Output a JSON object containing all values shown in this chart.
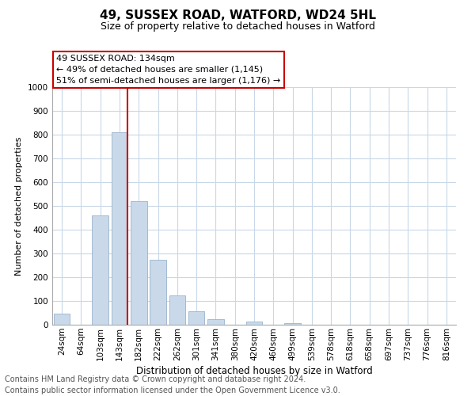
{
  "title": "49, SUSSEX ROAD, WATFORD, WD24 5HL",
  "subtitle": "Size of property relative to detached houses in Watford",
  "xlabel": "Distribution of detached houses by size in Watford",
  "ylabel": "Number of detached properties",
  "bar_labels": [
    "24sqm",
    "64sqm",
    "103sqm",
    "143sqm",
    "182sqm",
    "222sqm",
    "262sqm",
    "301sqm",
    "341sqm",
    "380sqm",
    "420sqm",
    "460sqm",
    "499sqm",
    "539sqm",
    "578sqm",
    "618sqm",
    "658sqm",
    "697sqm",
    "737sqm",
    "776sqm",
    "816sqm"
  ],
  "bar_values": [
    47,
    0,
    460,
    810,
    520,
    275,
    125,
    58,
    25,
    0,
    12,
    0,
    8,
    0,
    0,
    0,
    0,
    0,
    0,
    0,
    0
  ],
  "bar_color": "#c9d9ea",
  "bar_edge_color": "#9ab4cc",
  "vline_color": "#cc0000",
  "vline_index": 3,
  "ylim": [
    0,
    1000
  ],
  "yticks": [
    0,
    100,
    200,
    300,
    400,
    500,
    600,
    700,
    800,
    900,
    1000
  ],
  "grid_color": "#c8d8e8",
  "annotation_title": "49 SUSSEX ROAD: 134sqm",
  "annotation_line1": "← 49% of detached houses are smaller (1,145)",
  "annotation_line2": "51% of semi-detached houses are larger (1,176) →",
  "annotation_box_color": "#ffffff",
  "annotation_border_color": "#cc0000",
  "footer_line1": "Contains HM Land Registry data © Crown copyright and database right 2024.",
  "footer_line2": "Contains public sector information licensed under the Open Government Licence v3.0.",
  "title_fontsize": 11,
  "subtitle_fontsize": 9,
  "axis_label_fontsize": 8,
  "tick_fontsize": 7.5,
  "footer_fontsize": 7
}
